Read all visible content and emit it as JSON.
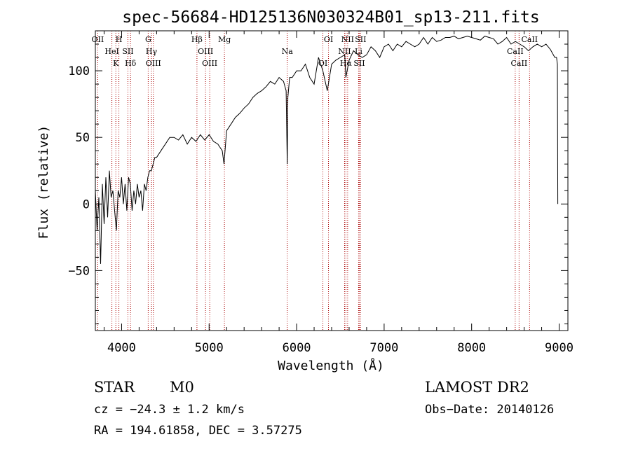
{
  "chart_data": {
    "type": "line",
    "title": "spec-56684-HD125136N030324B01_sp13-211.fits",
    "xlabel": "Wavelength (Å)",
    "ylabel": "Flux (relative)",
    "xlim": [
      3700,
      9100
    ],
    "ylim": [
      -95,
      130
    ],
    "x_ticks": [
      4000,
      5000,
      6000,
      7000,
      8000,
      9000
    ],
    "y_ticks": [
      -50,
      0,
      50,
      100
    ],
    "grid": false,
    "series": [
      {
        "color": "#000000",
        "x": [
          3700,
          3720,
          3740,
          3760,
          3780,
          3800,
          3820,
          3840,
          3860,
          3880,
          3900,
          3920,
          3940,
          3960,
          3980,
          4000,
          4020,
          4040,
          4060,
          4080,
          4100,
          4120,
          4140,
          4160,
          4180,
          4200,
          4220,
          4240,
          4260,
          4280,
          4300,
          4320,
          4340,
          4360,
          4380,
          4400,
          4450,
          4500,
          4550,
          4600,
          4650,
          4700,
          4750,
          4800,
          4850,
          4900,
          4950,
          5000,
          5050,
          5100,
          5150,
          5170,
          5200,
          5250,
          5300,
          5350,
          5400,
          5450,
          5500,
          5550,
          5600,
          5650,
          5700,
          5750,
          5800,
          5850,
          5880,
          5893,
          5900,
          5920,
          5950,
          6000,
          6050,
          6100,
          6150,
          6200,
          6250,
          6300,
          6350,
          6400,
          6450,
          6500,
          6550,
          6563,
          6600,
          6650,
          6700,
          6750,
          6800,
          6850,
          6900,
          6950,
          7000,
          7050,
          7100,
          7150,
          7200,
          7250,
          7300,
          7350,
          7400,
          7450,
          7500,
          7550,
          7600,
          7650,
          7700,
          7750,
          7800,
          7850,
          7900,
          7950,
          8000,
          8050,
          8100,
          8150,
          8200,
          8250,
          8300,
          8350,
          8400,
          8450,
          8500,
          8550,
          8600,
          8650,
          8700,
          8750,
          8800,
          8850,
          8900,
          8950,
          8970,
          8980,
          8985
        ],
        "y": [
          10,
          -20,
          5,
          -45,
          15,
          -15,
          20,
          -10,
          25,
          5,
          10,
          -5,
          -20,
          10,
          5,
          20,
          0,
          15,
          -5,
          20,
          15,
          -5,
          10,
          0,
          15,
          5,
          10,
          -5,
          15,
          10,
          20,
          25,
          25,
          30,
          35,
          35,
          40,
          45,
          50,
          50,
          48,
          52,
          45,
          50,
          47,
          52,
          48,
          52,
          47,
          45,
          40,
          30,
          55,
          60,
          65,
          68,
          72,
          75,
          80,
          83,
          85,
          88,
          92,
          90,
          95,
          92,
          85,
          30,
          80,
          95,
          95,
          100,
          100,
          105,
          95,
          90,
          110,
          100,
          85,
          105,
          108,
          110,
          112,
          95,
          108,
          115,
          112,
          110,
          112,
          118,
          115,
          110,
          118,
          120,
          115,
          120,
          118,
          122,
          120,
          118,
          120,
          125,
          120,
          125,
          122,
          123,
          125,
          125,
          126,
          124,
          125,
          126,
          125,
          124,
          123,
          126,
          125,
          124,
          120,
          122,
          125,
          120,
          122,
          120,
          118,
          115,
          118,
          120,
          118,
          120,
          116,
          110,
          110,
          105,
          0
        ]
      }
    ],
    "line_labels": [
      {
        "wavelength": 3727,
        "label": "OII"
      },
      {
        "wavelength": 3889,
        "label": "HeI"
      },
      {
        "wavelength": 3934,
        "label": "K"
      },
      {
        "wavelength": 3969,
        "label": "H"
      },
      {
        "wavelength": 4072,
        "label": "SII"
      },
      {
        "wavelength": 4102,
        "label": "Hδ"
      },
      {
        "wavelength": 4304,
        "label": "G"
      },
      {
        "wavelength": 4341,
        "label": "Hγ"
      },
      {
        "wavelength": 4363,
        "label": "OIII"
      },
      {
        "wavelength": 4861,
        "label": "Hβ"
      },
      {
        "wavelength": 4959,
        "label": "OIII"
      },
      {
        "wavelength": 5007,
        "label": "OIII"
      },
      {
        "wavelength": 5175,
        "label": "Mg"
      },
      {
        "wavelength": 5893,
        "label": "Na"
      },
      {
        "wavelength": 6300,
        "label": "OI"
      },
      {
        "wavelength": 6364,
        "label": "OI"
      },
      {
        "wavelength": 6548,
        "label": "NII"
      },
      {
        "wavelength": 6563,
        "label": "Hα"
      },
      {
        "wavelength": 6583,
        "label": "NII"
      },
      {
        "wavelength": 6708,
        "label": "Li"
      },
      {
        "wavelength": 6716,
        "label": "SII"
      },
      {
        "wavelength": 6731,
        "label": "SII"
      },
      {
        "wavelength": 8498,
        "label": "CaII"
      },
      {
        "wavelength": 8542,
        "label": "CaII"
      },
      {
        "wavelength": 8662,
        "label": "CaII"
      }
    ],
    "line_color": "#aa0000"
  },
  "info": {
    "object_class": "STAR",
    "subclass": "M0",
    "survey": "LAMOST DR2",
    "cz": "cz = −24.3 ± 1.2 km/s",
    "obs_date": "Obs−Date: 20140126",
    "coords": "RA = 194.61858, DEC =    3.57275"
  }
}
